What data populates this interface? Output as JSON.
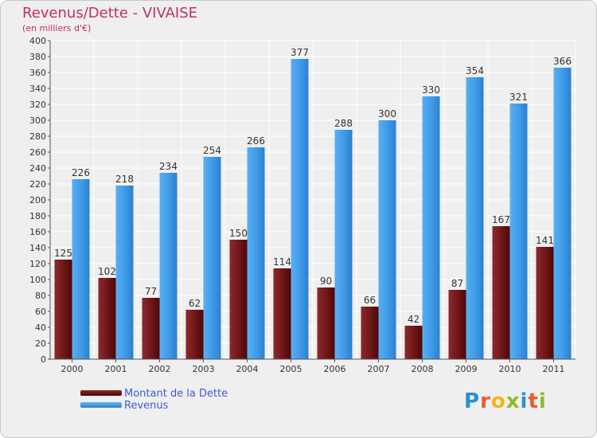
{
  "header": {
    "title": "Revenus/Dette - VIVAISE",
    "subtitle": "(en milliers d'€)"
  },
  "legend": {
    "items": [
      {
        "label": "Montant de la Dette",
        "color": "#6e0f12"
      },
      {
        "label": "Revenus",
        "color": "#3d9ae8"
      }
    ]
  },
  "logo": {
    "text": "Proxiti",
    "letters": [
      {
        "ch": "P",
        "color": "#2a8fd4"
      },
      {
        "ch": "r",
        "color": "#e85d2a"
      },
      {
        "ch": "o",
        "color": "#f2b619"
      },
      {
        "ch": "x",
        "color": "#8dbb2a"
      },
      {
        "ch": "i",
        "color": "#2a8fd4"
      },
      {
        "ch": "t",
        "color": "#e85d2a"
      },
      {
        "ch": "i",
        "color": "#8dbb2a"
      }
    ]
  },
  "chart_data": {
    "type": "bar",
    "title": "Revenus/Dette - VIVAISE",
    "subtitle": "(en milliers d'€)",
    "categories": [
      "2000",
      "2001",
      "2002",
      "2003",
      "2004",
      "2005",
      "2006",
      "2007",
      "2008",
      "2009",
      "2010",
      "2011"
    ],
    "series": [
      {
        "name": "Montant de la Dette",
        "color": "#6e0f12",
        "values": [
          125,
          102,
          77,
          62,
          150,
          114,
          90,
          66,
          42,
          87,
          167,
          141
        ]
      },
      {
        "name": "Revenus",
        "color": "#3d9ae8",
        "values": [
          226,
          218,
          234,
          254,
          266,
          377,
          288,
          300,
          330,
          354,
          321,
          366
        ]
      }
    ],
    "ylim": [
      0,
      400
    ],
    "ytick_step": 20,
    "grid": true,
    "legend_position": "bottom-left"
  }
}
